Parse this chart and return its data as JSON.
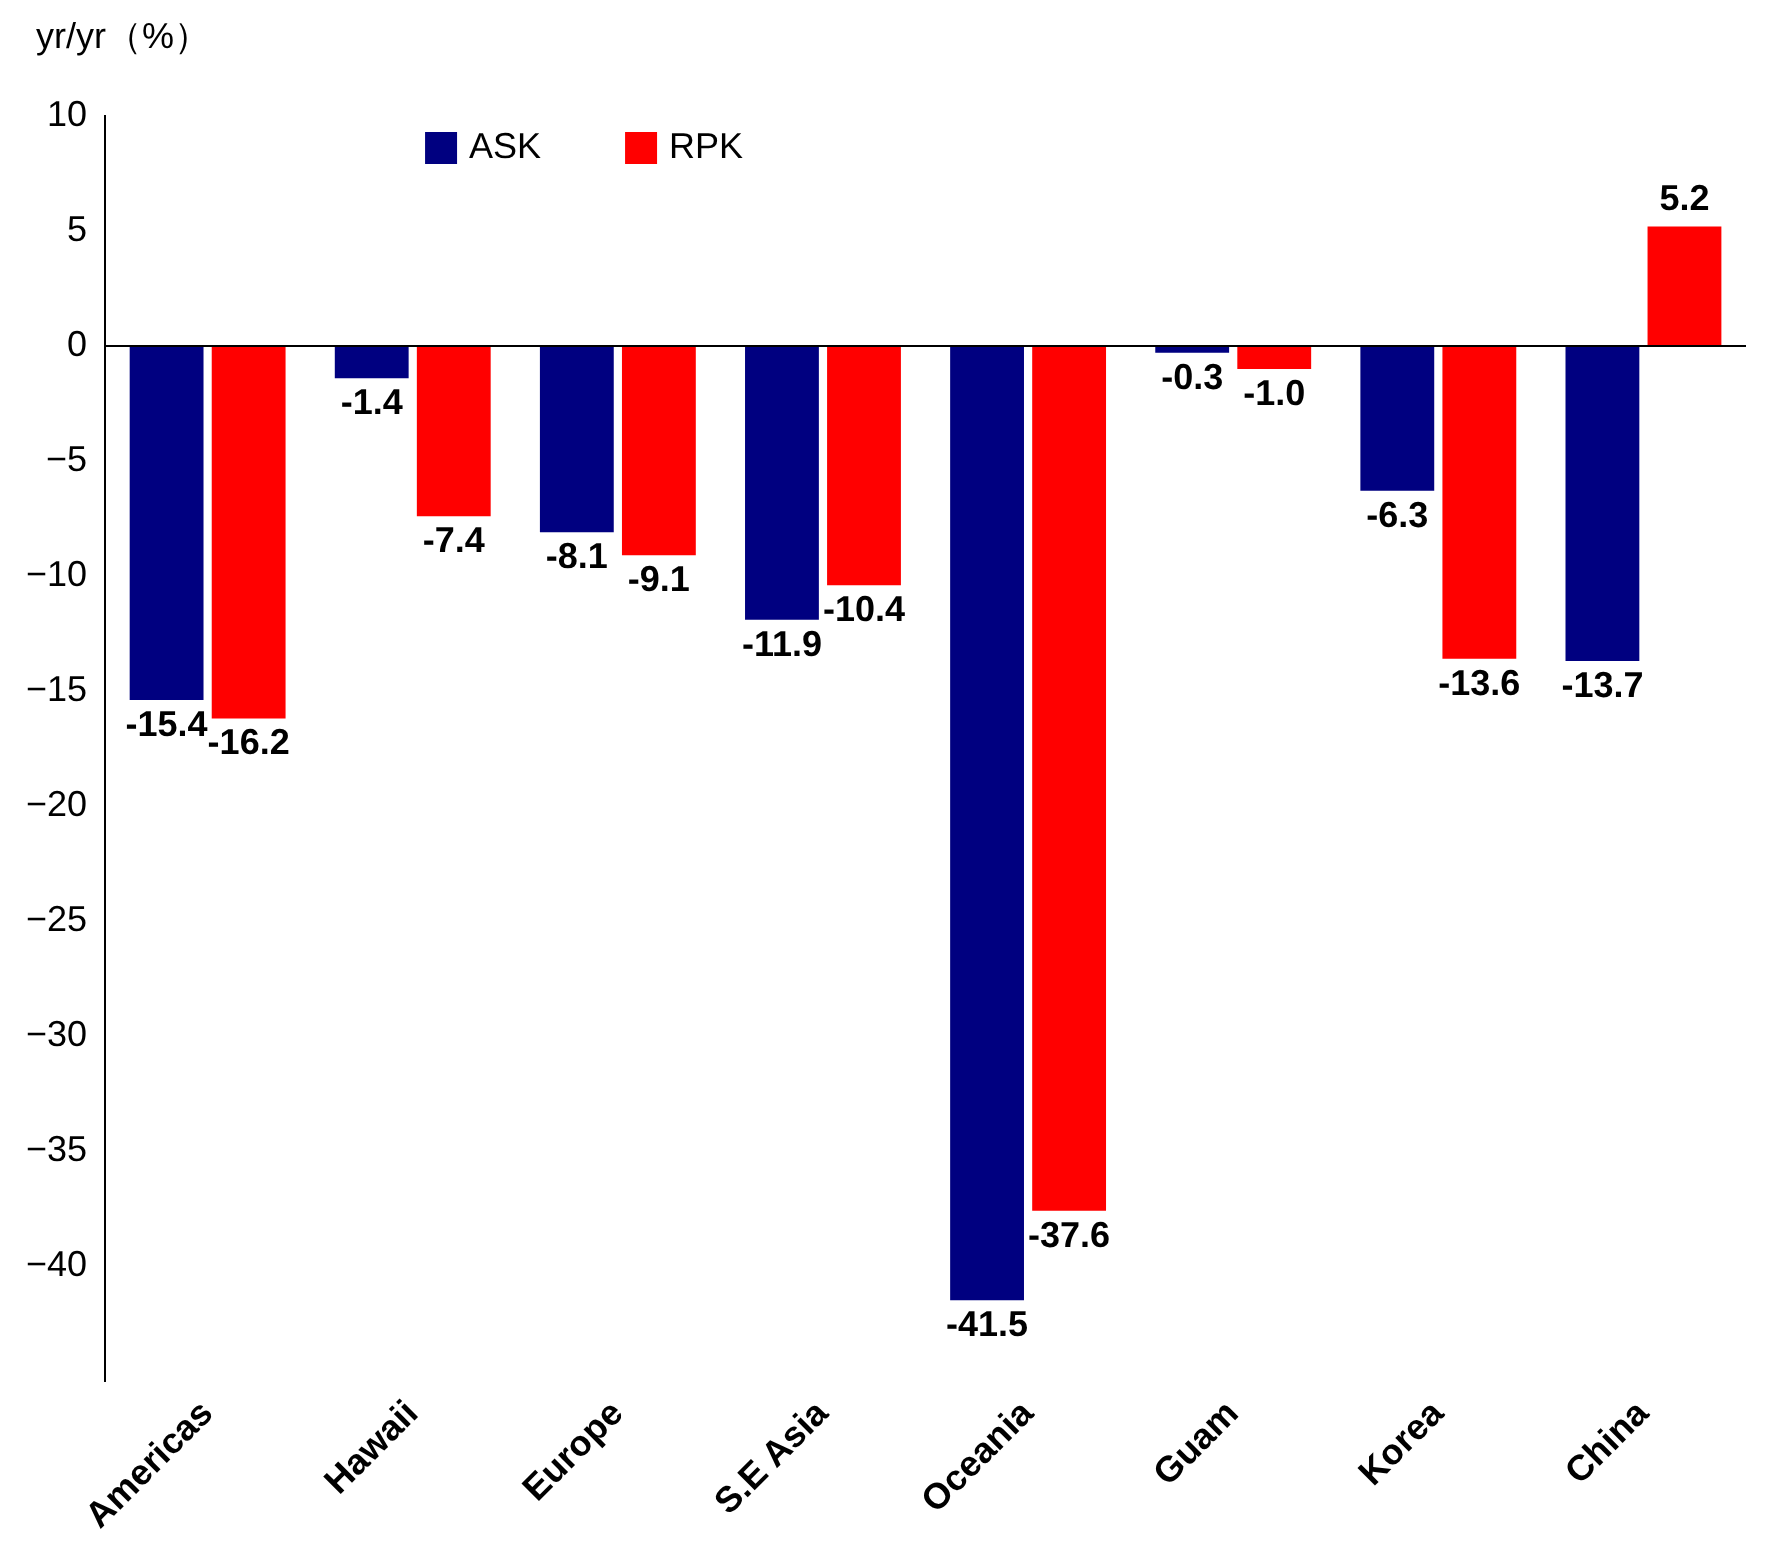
{
  "chart_data": {
    "type": "bar",
    "ylabel": "yr/yr（%）",
    "categories": [
      "Americas",
      "Hawaii",
      "Europe",
      "S.E Asia",
      "Oceania",
      "Guam",
      "Korea",
      "China"
    ],
    "series": [
      {
        "name": "ASK",
        "color": "#000080",
        "values": [
          -15.4,
          -1.4,
          -8.1,
          -11.9,
          -41.5,
          -0.3,
          -6.3,
          -13.7
        ],
        "value_labels": [
          "-15.4",
          "-1.4",
          "-8.1",
          "-11.9",
          "-41.5",
          "-0.3",
          "-6.3",
          "-13.7"
        ]
      },
      {
        "name": "RPK",
        "color": "#ff0000",
        "values": [
          -16.2,
          -7.4,
          -9.1,
          -10.4,
          -37.6,
          -1.0,
          -13.6,
          5.2
        ],
        "value_labels": [
          "-16.2",
          "-7.4",
          "-9.1",
          "-10.4",
          "-37.6",
          "-1.0",
          "-13.6",
          "5.2"
        ]
      }
    ],
    "ref_lines": [
      {
        "axis": "y",
        "value": 0,
        "color": "#000000"
      }
    ],
    "ylim": [
      -45,
      10
    ],
    "yticks": [
      -40,
      -35,
      -30,
      -25,
      -20,
      -15,
      -10,
      -5,
      0,
      5,
      10
    ],
    "grid": false,
    "legend": "top left"
  }
}
